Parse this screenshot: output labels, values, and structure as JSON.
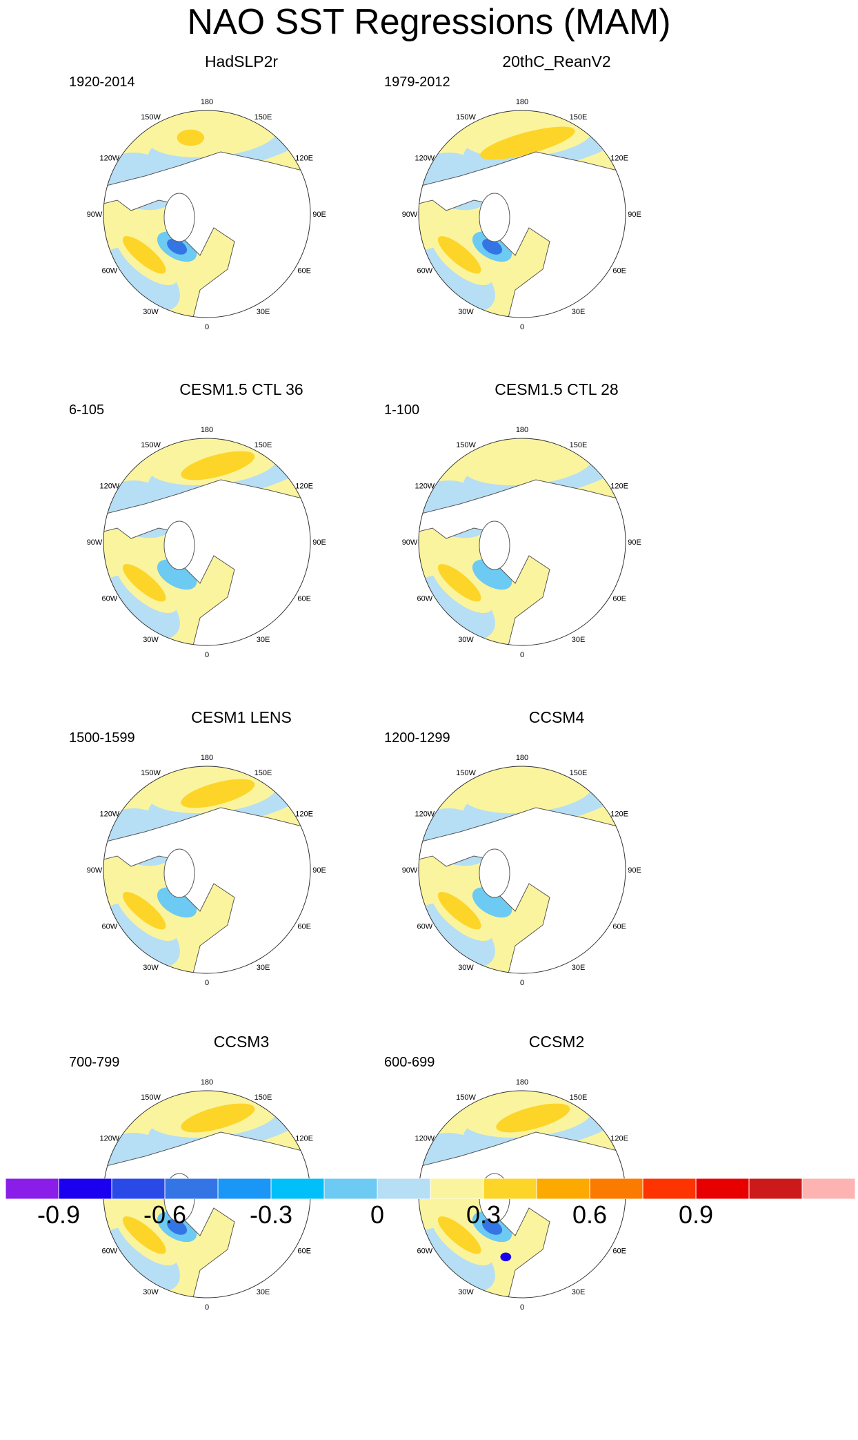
{
  "title": "NAO SST Regressions (MAM)",
  "panels": [
    {
      "name": "HadSLP2r",
      "period": "1920-2014",
      "variant": 0
    },
    {
      "name": "20thC_ReanV2",
      "period": "1979-2012",
      "variant": 1
    },
    {
      "name": "CESM1.5 CTL 36",
      "period": "6-105",
      "variant": 2
    },
    {
      "name": "CESM1.5 CTL 28",
      "period": "1-100",
      "variant": 3
    },
    {
      "name": "CESM1 LENS",
      "period": "1500-1599",
      "variant": 4
    },
    {
      "name": "CCSM4",
      "period": "1200-1299",
      "variant": 5
    },
    {
      "name": "CCSM3",
      "period": "700-799",
      "variant": 6
    },
    {
      "name": "CCSM2",
      "period": "600-699",
      "variant": 7
    }
  ],
  "longitude_labels": [
    "180",
    "150E",
    "120E",
    "90E",
    "60E",
    "30E",
    "0",
    "30W",
    "60W",
    "90W",
    "120W",
    "150W"
  ],
  "colorbar": {
    "colors": [
      "#8a1ee8",
      "#1a00ee",
      "#2a4ae8",
      "#3475e6",
      "#1a96f7",
      "#00bff9",
      "#6ccaf3",
      "#b6def5",
      "#fbf49e",
      "#fdd528",
      "#fca900",
      "#fb7a00",
      "#fd3300",
      "#e80000",
      "#cc1a1a",
      "#feb3b3"
    ],
    "tick_labels": [
      "-0.9",
      "-0.6",
      "-0.3",
      "0",
      "0.3",
      "0.6",
      "0.9"
    ]
  }
}
